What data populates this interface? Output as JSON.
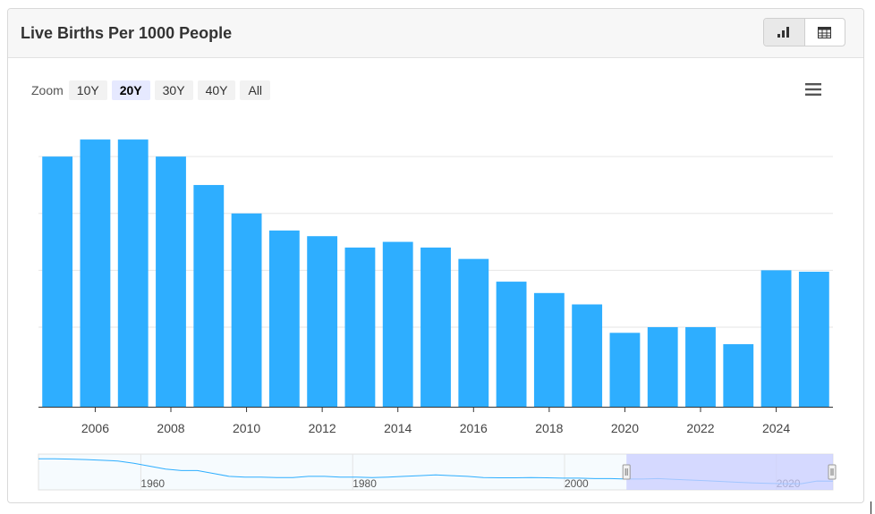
{
  "header": {
    "title": "Live Births Per 1000 People"
  },
  "toolbar": {
    "zoom_label": "Zoom",
    "zoom_options": [
      "10Y",
      "20Y",
      "30Y",
      "40Y",
      "All"
    ],
    "selected_zoom": "20Y"
  },
  "colors": {
    "bar": "#2eaeff",
    "navigator_line": "#2eaeff",
    "navigator_mask": "#c9ceff"
  },
  "chart_data": {
    "type": "bar",
    "title": "Live Births Per 1000 People",
    "x": [
      2005,
      2006,
      2007,
      2008,
      2009,
      2010,
      2011,
      2012,
      2013,
      2014,
      2015,
      2016,
      2017,
      2018,
      2019,
      2020,
      2021,
      2022,
      2023,
      2024,
      2025
    ],
    "values": [
      8.8,
      9.4,
      9.4,
      8.8,
      7.8,
      6.8,
      6.2,
      6.0,
      5.6,
      5.8,
      5.6,
      5.2,
      4.4,
      4.0,
      3.6,
      2.6,
      2.8,
      2.8,
      2.2,
      4.8,
      4.75
    ],
    "xtick_labels": [
      "2006",
      "2008",
      "2010",
      "2012",
      "2014",
      "2016",
      "2018",
      "2020",
      "2022",
      "2024"
    ],
    "ylim": [
      0,
      10
    ],
    "grid": true,
    "legend": "none",
    "navigator": {
      "tick_labels": [
        "1960",
        "1980",
        "2000",
        "2020"
      ],
      "range": [
        1950,
        2025
      ],
      "selected_range": [
        2005,
        2025
      ],
      "values": [
        20,
        20,
        19.8,
        19.5,
        19,
        18.5,
        17,
        15,
        13,
        12,
        12,
        10,
        8,
        7.5,
        7.5,
        7.2,
        7.2,
        8,
        8,
        7.5,
        7.5,
        7.2,
        7.5,
        8,
        8.5,
        9,
        8.5,
        8,
        7.2,
        7,
        7,
        7.2,
        7,
        6.8,
        6.8,
        6.5,
        6.5,
        6.2,
        6.2,
        6.5,
        6,
        5.5,
        5,
        4.5,
        4,
        3.5,
        3.2,
        3,
        3,
        4.8,
        4.75
      ]
    }
  }
}
